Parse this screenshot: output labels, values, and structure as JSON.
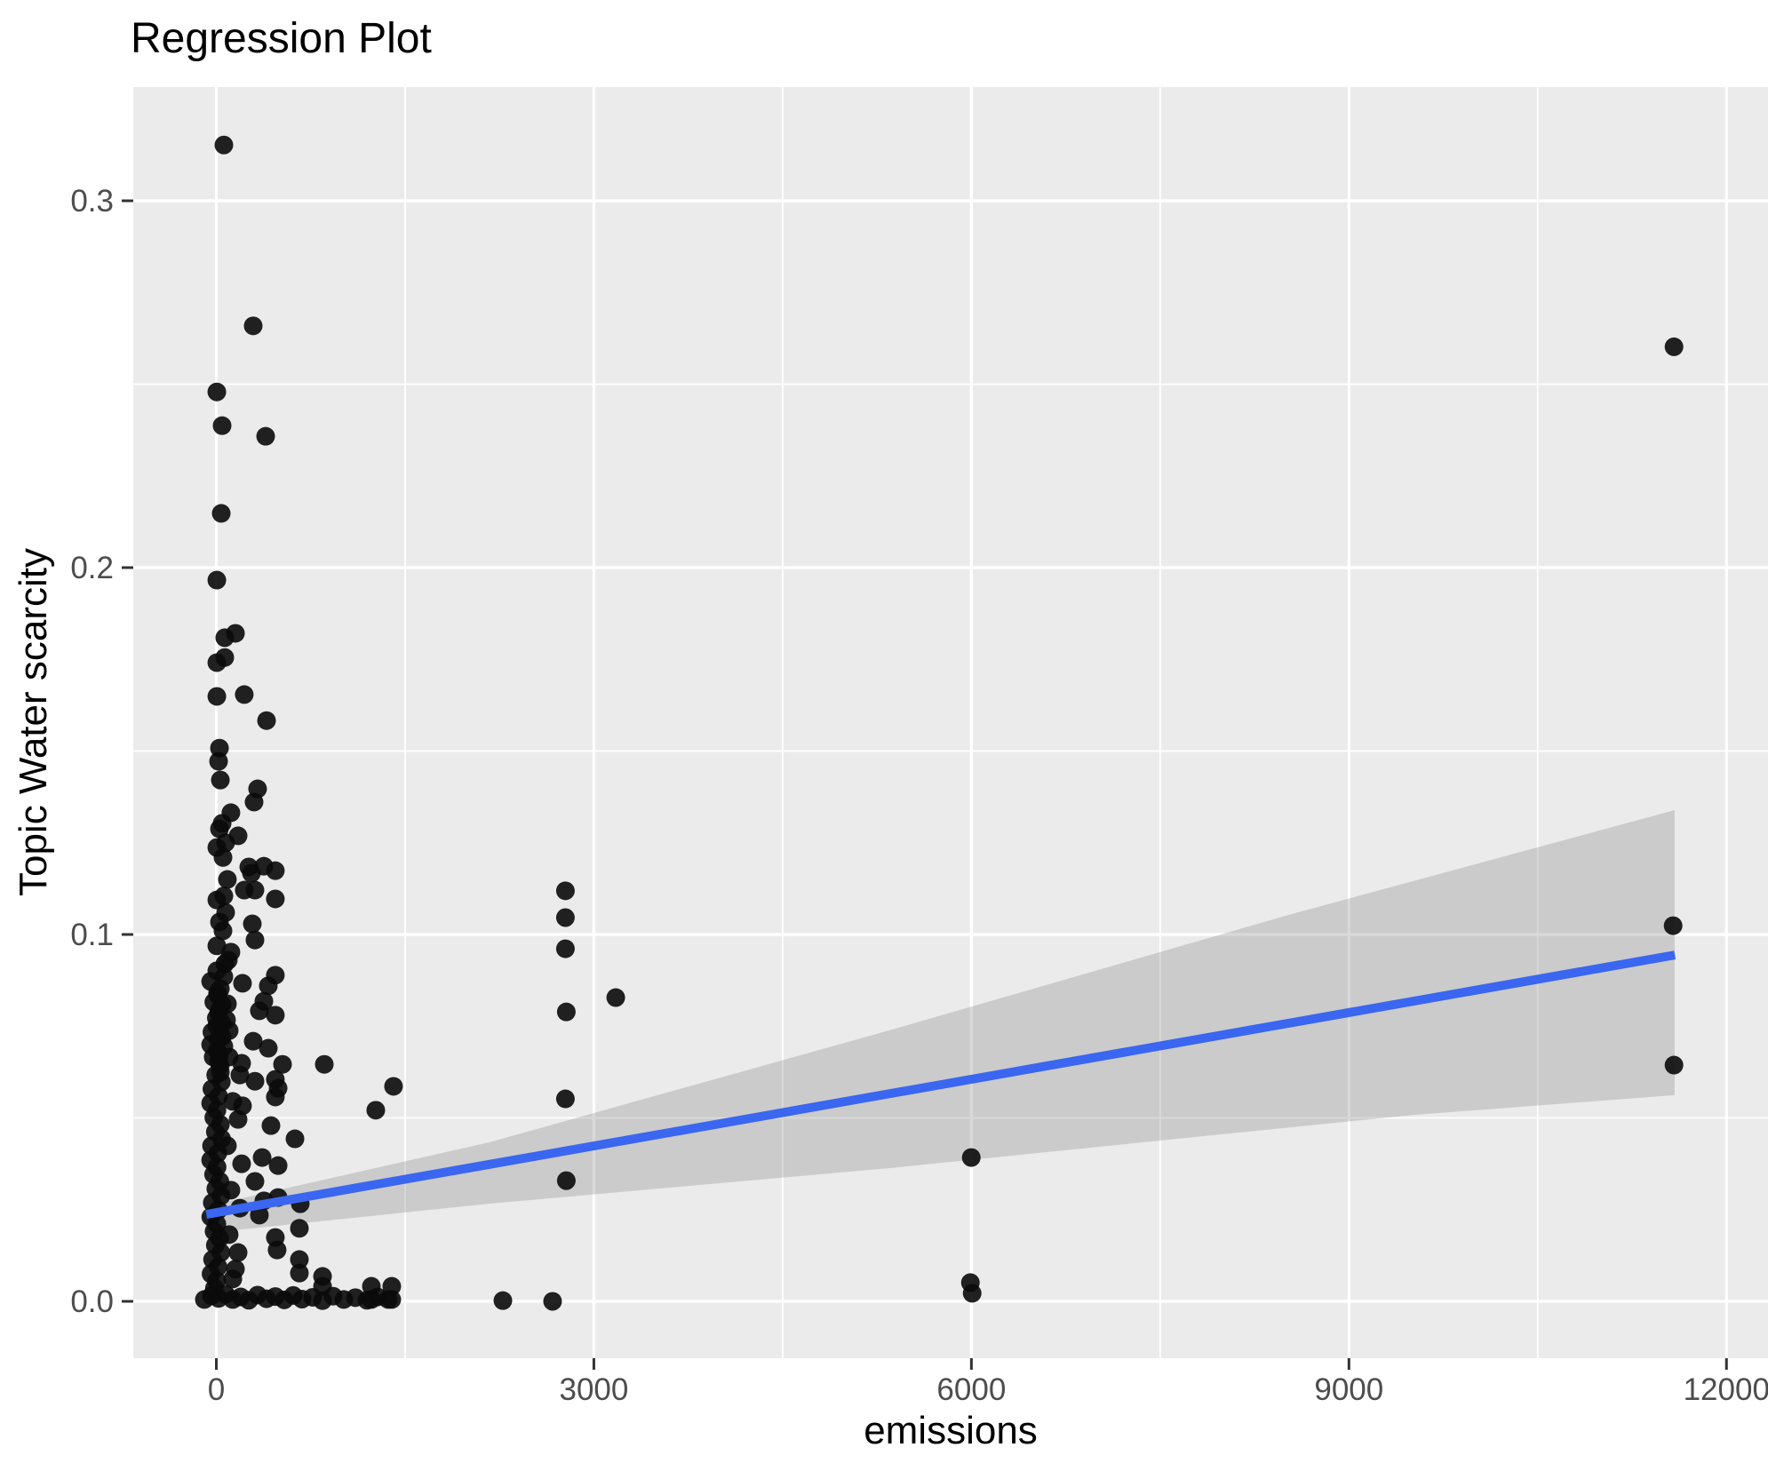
{
  "chart_data": {
    "type": "scatter",
    "title": "Regression Plot",
    "xlabel": "emissions",
    "ylabel": "Topic Water scarcity",
    "x_range": [
      -660,
      12330
    ],
    "y_range": [
      -0.0155,
      0.331
    ],
    "x_ticks": [
      {
        "value": 0,
        "label": "0"
      },
      {
        "value": 3000,
        "label": "3000"
      },
      {
        "value": 6000,
        "label": "6000"
      },
      {
        "value": 9000,
        "label": "9000"
      },
      {
        "value": 12000,
        "label": "12000"
      }
    ],
    "y_ticks": [
      {
        "value": 0.0,
        "label": "0.0"
      },
      {
        "value": 0.1,
        "label": "0.1"
      },
      {
        "value": 0.2,
        "label": "0.2"
      },
      {
        "value": 0.3,
        "label": "0.3"
      }
    ],
    "x_minor": [
      1500,
      4500,
      7500,
      10500
    ],
    "y_minor": [
      0.05,
      0.15,
      0.25
    ],
    "grid": true,
    "legend": "none",
    "style": {
      "panel_bg": "#EBEBEB",
      "grid_color": "#FFFFFF",
      "point_color": "#0A0A0A",
      "line_color": "#3A66F0",
      "band_color": "rgba(130,130,130,0.30)",
      "tick_label_color": "#4D4D4D",
      "tick_mark_color": "#333333"
    },
    "regression": {
      "line": {
        "x1": -80,
        "y1": 0.0237,
        "x2": 11590,
        "y2": 0.0944
      },
      "band_upper": [
        [
          -80,
          0.0259
        ],
        [
          2164,
          0.0433
        ],
        [
          5341,
          0.0738
        ],
        [
          8517,
          0.1053
        ],
        [
          11588,
          0.1339
        ]
      ],
      "band_lower": [
        [
          -80,
          0.0186
        ],
        [
          2164,
          0.0266
        ],
        [
          5341,
          0.0363
        ],
        [
          9506,
          0.0508
        ],
        [
          11588,
          0.0562
        ]
      ]
    },
    "points": [
      [
        60,
        0.3152
      ],
      [
        293,
        0.2659
      ],
      [
        4,
        0.2479
      ],
      [
        46,
        0.2387
      ],
      [
        392,
        0.2358
      ],
      [
        39,
        0.2148
      ],
      [
        4,
        0.1966
      ],
      [
        67,
        0.1809
      ],
      [
        152,
        0.1821
      ],
      [
        4,
        0.1741
      ],
      [
        67,
        0.1755
      ],
      [
        4,
        0.1649
      ],
      [
        222,
        0.1654
      ],
      [
        399,
        0.1583
      ],
      [
        25,
        0.1508
      ],
      [
        18,
        0.1472
      ],
      [
        32,
        0.1421
      ],
      [
        328,
        0.1397
      ],
      [
        300,
        0.1361
      ],
      [
        116,
        0.1332
      ],
      [
        46,
        0.1303
      ],
      [
        25,
        0.1288
      ],
      [
        173,
        0.1269
      ],
      [
        4,
        0.1237
      ],
      [
        258,
        0.1184
      ],
      [
        469,
        0.1174
      ],
      [
        378,
        0.1186
      ],
      [
        279,
        0.1167
      ],
      [
        222,
        0.1121
      ],
      [
        307,
        0.1121
      ],
      [
        4,
        0.1094
      ],
      [
        469,
        0.1097
      ],
      [
        25,
        0.1034
      ],
      [
        286,
        0.1029
      ],
      [
        307,
        0.0985
      ],
      [
        4,
        0.0969
      ],
      [
        116,
        0.0952
      ],
      [
        67,
        0.092
      ],
      [
        4,
        0.0901
      ],
      [
        469,
        0.0889
      ],
      [
        208,
        0.0867
      ],
      [
        413,
        0.086
      ],
      [
        32,
        0.0852
      ],
      [
        11,
        0.0835
      ],
      [
        378,
        0.0818
      ],
      [
        46,
        0.0809
      ],
      [
        18,
        0.0787
      ],
      [
        342,
        0.0792
      ],
      [
        469,
        0.078
      ],
      [
        81,
        0.0767
      ],
      [
        4,
        0.0751
      ],
      [
        46,
        0.0721
      ],
      [
        293,
        0.0709
      ],
      [
        413,
        0.069
      ],
      [
        25,
        0.0673
      ],
      [
        201,
        0.0649
      ],
      [
        526,
        0.0646
      ],
      [
        858,
        0.0646
      ],
      [
        32,
        0.0625
      ],
      [
        307,
        0.06
      ],
      [
        469,
        0.0605
      ],
      [
        1408,
        0.0586
      ],
      [
        491,
        0.0581
      ],
      [
        18,
        0.0654
      ],
      [
        60,
        0.0695
      ],
      [
        102,
        0.0738
      ],
      [
        469,
        0.0557
      ],
      [
        208,
        0.0533
      ],
      [
        1267,
        0.0521
      ],
      [
        434,
        0.0479
      ],
      [
        625,
        0.0443
      ],
      [
        364,
        0.0392
      ],
      [
        491,
        0.037
      ],
      [
        307,
        0.0327
      ],
      [
        342,
        0.0235
      ],
      [
        378,
        0.0274
      ],
      [
        491,
        0.0283
      ],
      [
        667,
        0.0266
      ],
      [
        660,
        0.0199
      ],
      [
        469,
        0.0174
      ],
      [
        483,
        0.014
      ],
      [
        660,
        0.0114
      ],
      [
        660,
        0.0077
      ],
      [
        844,
        0.0068
      ],
      [
        844,
        0.0041
      ],
      [
        74,
        0.125
      ],
      [
        53,
        0.121
      ],
      [
        88,
        0.115
      ],
      [
        60,
        0.1105
      ],
      [
        74,
        0.106
      ],
      [
        53,
        0.101
      ],
      [
        95,
        0.093
      ],
      [
        60,
        0.0885
      ],
      [
        -45,
        0.0872
      ],
      [
        10,
        0.084
      ],
      [
        -20,
        0.0816
      ],
      [
        30,
        0.0797
      ],
      [
        0,
        0.0772
      ],
      [
        45,
        0.0758
      ],
      [
        -35,
        0.0734
      ],
      [
        15,
        0.0714
      ],
      [
        -45,
        0.07
      ],
      [
        8,
        0.0683
      ],
      [
        -25,
        0.0666
      ],
      [
        30,
        0.0642
      ],
      [
        -5,
        0.0617
      ],
      [
        40,
        0.0598
      ],
      [
        -35,
        0.0579
      ],
      [
        18,
        0.0559
      ],
      [
        -45,
        0.054
      ],
      [
        5,
        0.0521
      ],
      [
        -20,
        0.0501
      ],
      [
        32,
        0.0482
      ],
      [
        -8,
        0.0462
      ],
      [
        42,
        0.0443
      ],
      [
        -38,
        0.0424
      ],
      [
        12,
        0.0404
      ],
      [
        -45,
        0.0385
      ],
      [
        6,
        0.0366
      ],
      [
        -22,
        0.0346
      ],
      [
        28,
        0.0327
      ],
      [
        -4,
        0.0307
      ],
      [
        38,
        0.0288
      ],
      [
        -32,
        0.0269
      ],
      [
        16,
        0.0249
      ],
      [
        -44,
        0.023
      ],
      [
        4,
        0.0211
      ],
      [
        -18,
        0.0191
      ],
      [
        26,
        0.0172
      ],
      [
        -8,
        0.0153
      ],
      [
        36,
        0.0133
      ],
      [
        -30,
        0.0114
      ],
      [
        14,
        0.0094
      ],
      [
        -42,
        0.0075
      ],
      [
        2,
        0.0056
      ],
      [
        -15,
        0.0036
      ],
      [
        88,
        0.0811
      ],
      [
        102,
        0.0666
      ],
      [
        131,
        0.0545
      ],
      [
        88,
        0.0424
      ],
      [
        116,
        0.0303
      ],
      [
        102,
        0.0182
      ],
      [
        131,
        0.0061
      ],
      [
        187,
        0.0617
      ],
      [
        173,
        0.0496
      ],
      [
        201,
        0.0375
      ],
      [
        187,
        0.0254
      ],
      [
        173,
        0.0133
      ],
      [
        152,
        0.0088
      ],
      [
        -95,
        0.0005
      ],
      [
        -39,
        0.0015
      ],
      [
        18,
        0.0008
      ],
      [
        74,
        0.0019
      ],
      [
        131,
        0.0005
      ],
      [
        194,
        0.0012
      ],
      [
        258,
        0.0003
      ],
      [
        328,
        0.0017
      ],
      [
        399,
        0.0007
      ],
      [
        469,
        0.0013
      ],
      [
        540,
        0.0004
      ],
      [
        611,
        0.0016
      ],
      [
        681,
        0.0006
      ],
      [
        766,
        0.0011
      ],
      [
        844,
        0.0002
      ],
      [
        928,
        0.0014
      ],
      [
        1013,
        0.0005
      ],
      [
        1105,
        0.001
      ],
      [
        1197,
        0.0003
      ],
      [
        1281,
        0.0012
      ],
      [
        1366,
        0.0005
      ],
      [
        1232,
        0.0041
      ],
      [
        1394,
        0.0041
      ],
      [
        1232,
        0.0005
      ],
      [
        1394,
        0.0005
      ],
      [
        2277,
        0.0002
      ],
      [
        2672,
        0.0
      ],
      [
        2774,
        0.1119
      ],
      [
        2774,
        0.1046
      ],
      [
        2774,
        0.0961
      ],
      [
        2781,
        0.0789
      ],
      [
        2774,
        0.0552
      ],
      [
        2781,
        0.0329
      ],
      [
        3174,
        0.0828
      ],
      [
        5999,
        0.0392
      ],
      [
        5992,
        0.0051
      ],
      [
        6006,
        0.0022
      ],
      [
        11583,
        0.2602
      ],
      [
        11576,
        0.1024
      ],
      [
        11583,
        0.0644
      ]
    ]
  }
}
